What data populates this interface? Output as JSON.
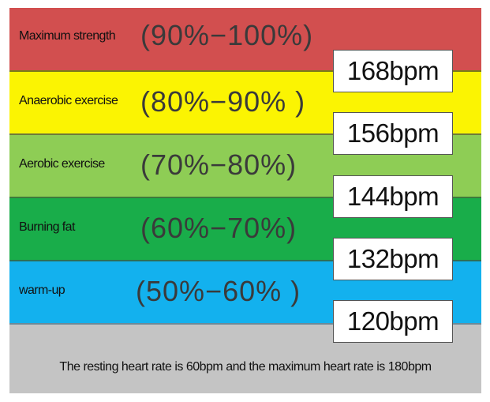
{
  "bands": [
    {
      "label": "Maximum strength",
      "range": "(90%−100%)",
      "color": "#d24f4f"
    },
    {
      "label": "Anaerobic exercise",
      "range": "(80%−90% )",
      "color": "#fbf402"
    },
    {
      "label": "Aerobic exercise",
      "range": "(70%−80%)",
      "color": "#8ecd55"
    },
    {
      "label": "Burning fat",
      "range": "(60%−70%)",
      "color": "#19ad4a"
    },
    {
      "label": "warm-up",
      "range": "(50%−60% )",
      "color": "#13b1ee"
    }
  ],
  "thresholds": [
    "168bpm",
    "156bpm",
    "144bpm",
    "132bpm",
    "120bpm"
  ],
  "footer": {
    "text": "The resting heart rate is 60bpm and the maximum heart rate is 180bpm",
    "color": "#c4c4c4"
  }
}
